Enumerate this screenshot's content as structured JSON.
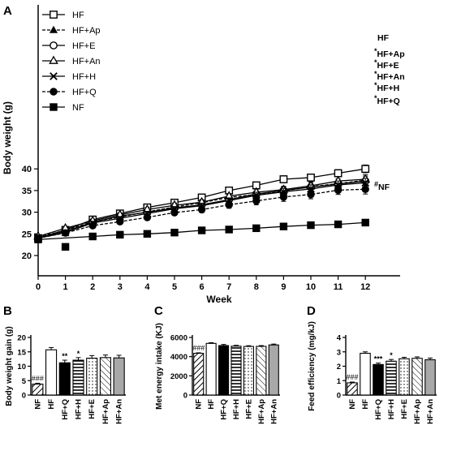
{
  "panels": {
    "a": {
      "letter": "A"
    },
    "b": {
      "letter": "B"
    },
    "c": {
      "letter": "C"
    },
    "d": {
      "letter": "D"
    }
  },
  "chart_data": [
    {
      "id": "A",
      "type": "line",
      "xlabel": "Week",
      "ylabel": "Body weight (g)",
      "x": [
        0,
        1,
        2,
        3,
        4,
        5,
        6,
        7,
        8,
        9,
        10,
        11,
        12
      ],
      "xlim": [
        0,
        12
      ],
      "ylim": [
        19,
        42
      ],
      "yticks": [
        20,
        25,
        30,
        35,
        40
      ],
      "legend_position": "top-left",
      "series": [
        {
          "name": "HF",
          "marker": "square-open",
          "line": "solid",
          "values": [
            24.0,
            25.9,
            28.3,
            29.7,
            31.1,
            32.2,
            33.4,
            35.0,
            36.2,
            37.6,
            38.0,
            39.0,
            40.0
          ],
          "errors": [
            0.4,
            0.4,
            0.4,
            0.4,
            0.5,
            0.5,
            0.5,
            0.6,
            0.7,
            0.8,
            0.8,
            0.8,
            0.9
          ],
          "end_label": "HF"
        },
        {
          "name": "HF+Ap",
          "marker": "triangle-filled",
          "line": "dashed",
          "values": [
            24.3,
            25.8,
            27.8,
            28.9,
            30.1,
            31.2,
            32.2,
            33.4,
            34.1,
            34.9,
            35.9,
            36.6,
            37.4
          ],
          "errors": [
            0.4,
            0.4,
            0.4,
            0.5,
            0.5,
            0.6,
            0.6,
            0.7,
            0.8,
            0.9,
            1.0,
            1.1,
            1.2
          ],
          "end_label": "*HF+Ap"
        },
        {
          "name": "HF+E",
          "marker": "circle-open",
          "line": "solid",
          "values": [
            24.1,
            25.6,
            27.7,
            29.1,
            30.0,
            31.0,
            31.7,
            32.9,
            34.2,
            35.0,
            35.8,
            36.5,
            37.2
          ],
          "errors": [
            0.4,
            0.4,
            0.4,
            0.4,
            0.5,
            0.5,
            0.6,
            0.6,
            0.7,
            0.8,
            0.8,
            0.9,
            1.0
          ],
          "end_label": "*HF+E"
        },
        {
          "name": "HF+An",
          "marker": "triangle-open",
          "line": "solid",
          "values": [
            24.4,
            26.3,
            28.0,
            29.4,
            30.6,
            31.6,
            32.3,
            33.7,
            34.6,
            35.2,
            36.1,
            37.2,
            37.6
          ],
          "errors": [
            0.4,
            0.4,
            0.4,
            0.4,
            0.5,
            0.5,
            0.6,
            0.6,
            0.7,
            0.8,
            0.9,
            1.0,
            1.0
          ],
          "end_label": "*HF+An"
        },
        {
          "name": "HF+H",
          "marker": "x",
          "line": "solid",
          "values": [
            24.0,
            25.3,
            27.5,
            28.6,
            29.7,
            30.8,
            31.5,
            32.7,
            33.9,
            34.7,
            35.4,
            36.3,
            36.8
          ],
          "errors": [
            0.4,
            0.4,
            0.4,
            0.4,
            0.5,
            0.5,
            0.6,
            0.6,
            0.7,
            0.8,
            0.9,
            0.9,
            1.0
          ],
          "end_label": "*HF+H"
        },
        {
          "name": "HF+Q",
          "marker": "circle-filled",
          "line": "dashed",
          "values": [
            24.0,
            25.2,
            26.9,
            27.8,
            28.8,
            29.9,
            30.6,
            31.7,
            32.6,
            33.5,
            34.1,
            35.1,
            35.3
          ],
          "errors": [
            0.4,
            0.5,
            0.5,
            0.5,
            0.6,
            0.6,
            0.7,
            0.8,
            0.9,
            1.0,
            1.0,
            1.0,
            1.1
          ],
          "end_label": "*HF+Q"
        },
        {
          "name": "NF",
          "marker": "square-filled",
          "line": "solid",
          "values": [
            23.7,
            22.0,
            24.4,
            24.8,
            25.0,
            25.3,
            25.8,
            26.0,
            26.3,
            26.7,
            27.0,
            27.2,
            27.6
          ],
          "errors": [
            0.3,
            0.4,
            0.2,
            0.2,
            0.2,
            0.2,
            0.2,
            0.2,
            0.2,
            0.2,
            0.2,
            0.2,
            0.3
          ],
          "end_label": "#NF"
        }
      ]
    },
    {
      "id": "B",
      "type": "bar",
      "ylabel": "Body weight gain (g)",
      "categories": [
        "NF",
        "HF",
        "HF+Q",
        "HF+H",
        "HF+E",
        "HF+Ap",
        "HF+An"
      ],
      "values": [
        3.8,
        15.7,
        11.2,
        12.1,
        12.8,
        13.0,
        12.9
      ],
      "errors": [
        0.3,
        0.8,
        0.9,
        0.9,
        0.9,
        0.9,
        0.9
      ],
      "annotations": [
        "###",
        "",
        "**",
        "*",
        "",
        "",
        ""
      ],
      "ylim": [
        0,
        20
      ],
      "yticks": [
        0,
        5,
        10,
        15,
        20
      ]
    },
    {
      "id": "C",
      "type": "bar",
      "ylabel": "Met energy intake (KJ)",
      "categories": [
        "NF",
        "HF",
        "HF+Q",
        "HF+H",
        "HF+E",
        "HF+Ap",
        "HF+An"
      ],
      "values": [
        4350,
        5380,
        5150,
        5090,
        5060,
        5070,
        5220
      ],
      "errors": [
        50,
        70,
        120,
        90,
        80,
        80,
        90
      ],
      "annotations": [
        "###",
        "",
        "",
        "",
        "",
        "",
        ""
      ],
      "ylim": [
        0,
        6000
      ],
      "yticks": [
        0,
        2000,
        4000,
        6000
      ]
    },
    {
      "id": "D",
      "type": "bar",
      "ylabel": "Feed efficiency (mg/kJ)",
      "categories": [
        "NF",
        "HF",
        "HF+Q",
        "HF+H",
        "HF+E",
        "HF+Ap",
        "HF+An"
      ],
      "values": [
        0.85,
        2.9,
        2.12,
        2.35,
        2.52,
        2.55,
        2.45
      ],
      "errors": [
        0.05,
        0.1,
        0.1,
        0.12,
        0.1,
        0.1,
        0.12
      ],
      "annotations": [
        "###",
        "",
        "***",
        "*",
        "",
        "",
        ""
      ],
      "ylim": [
        0,
        4
      ],
      "yticks": [
        0,
        1,
        2,
        3,
        4
      ]
    }
  ]
}
